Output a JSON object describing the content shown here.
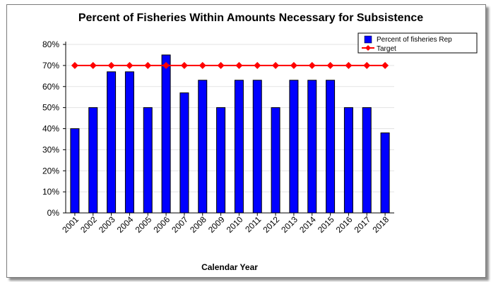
{
  "chart_data": {
    "type": "bar",
    "title": "Percent of Fisheries Within Amounts Necessary for Subsistence",
    "xlabel": "Calendar Year",
    "ylabel": "",
    "categories": [
      "2001",
      "2002",
      "2003",
      "2004",
      "2005",
      "2006",
      "2007",
      "2008",
      "2009",
      "2010",
      "2011",
      "2012",
      "2013",
      "2014",
      "2015",
      "2016",
      "2017",
      "2018"
    ],
    "ylim": [
      0,
      80
    ],
    "yticks": [
      0,
      10,
      20,
      30,
      40,
      50,
      60,
      70,
      80
    ],
    "ytick_suffix": "%",
    "grid": true,
    "legend_position": "top-right",
    "series": [
      {
        "name": "Percent of fisheries Rep",
        "type": "bar",
        "color": "#0000ff",
        "values": [
          40,
          50,
          67,
          67,
          50,
          75,
          57,
          63,
          50,
          63,
          63,
          50,
          63,
          63,
          63,
          50,
          50,
          38
        ]
      },
      {
        "name": "Target",
        "type": "line",
        "color": "#ff0000",
        "values": [
          70,
          70,
          70,
          70,
          70,
          70,
          70,
          70,
          70,
          70,
          70,
          70,
          70,
          70,
          70,
          70,
          70,
          70
        ]
      }
    ]
  }
}
